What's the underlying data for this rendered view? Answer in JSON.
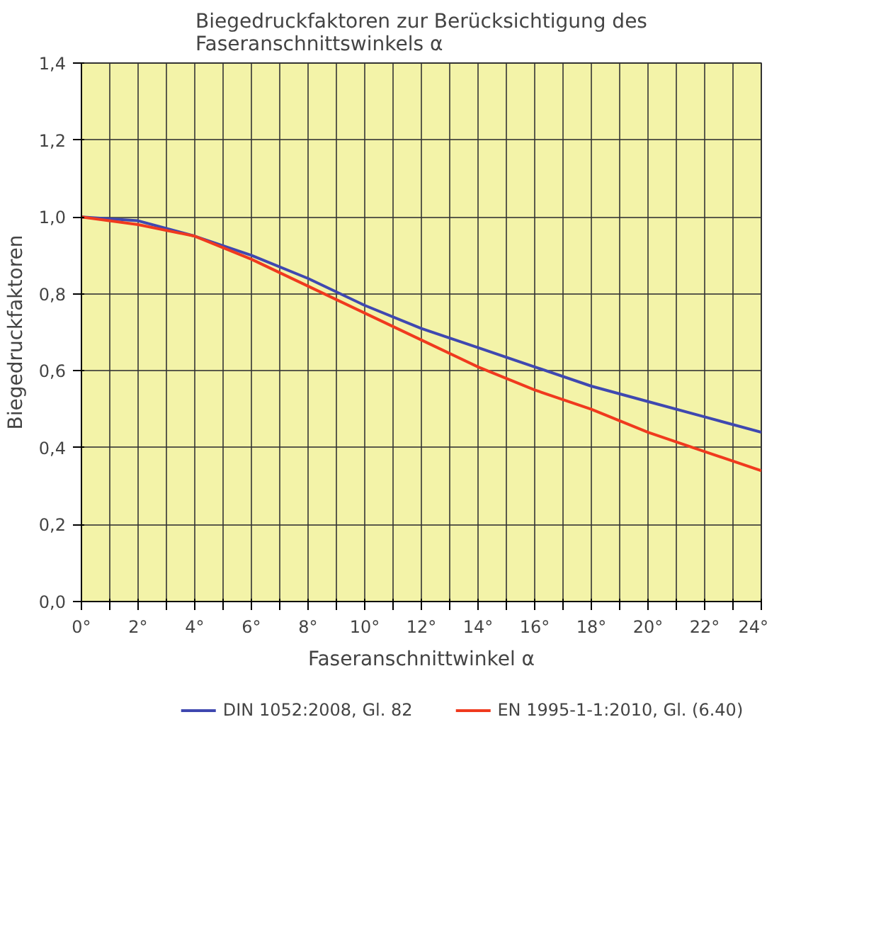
{
  "chart_data": {
    "type": "line",
    "title": "Biegedruckfaktoren zur Berücksichtigung des Faseranschnittswinkels α",
    "xlabel": "Faseranschnittwinkel α",
    "ylabel": "Biegedruckfaktoren",
    "x": [
      0,
      2,
      4,
      6,
      8,
      10,
      12,
      14,
      16,
      18,
      20,
      22,
      24
    ],
    "series": [
      {
        "name": "DIN 1052:2008, Gl. 82",
        "color": "#3f48b0",
        "values": [
          1.0,
          0.99,
          0.95,
          0.9,
          0.84,
          0.77,
          0.71,
          0.66,
          0.61,
          0.56,
          0.52,
          0.48,
          0.44
        ]
      },
      {
        "name": "EN 1995-1-1:2010, Gl. (6.40)",
        "color": "#f03a1e",
        "values": [
          1.0,
          0.98,
          0.95,
          0.89,
          0.82,
          0.75,
          0.68,
          0.61,
          0.55,
          0.5,
          0.44,
          0.39,
          0.34
        ]
      }
    ],
    "xlim": [
      0,
      24
    ],
    "xticks": [
      {
        "value": 0,
        "label": "0°"
      },
      {
        "value": 1,
        "label": null
      },
      {
        "value": 2,
        "label": "2°"
      },
      {
        "value": 3,
        "label": null
      },
      {
        "value": 4,
        "label": "4°"
      },
      {
        "value": 5,
        "label": null
      },
      {
        "value": 6,
        "label": "6°"
      },
      {
        "value": 7,
        "label": null
      },
      {
        "value": 8,
        "label": "8°"
      },
      {
        "value": 9,
        "label": null
      },
      {
        "value": 10,
        "label": "10°"
      },
      {
        "value": 11,
        "label": null
      },
      {
        "value": 12,
        "label": "12°"
      },
      {
        "value": 13,
        "label": null
      },
      {
        "value": 14,
        "label": "14°"
      },
      {
        "value": 15,
        "label": null
      },
      {
        "value": 16,
        "label": "16°"
      },
      {
        "value": 17,
        "label": null
      },
      {
        "value": 18,
        "label": "18°"
      },
      {
        "value": 19,
        "label": null
      },
      {
        "value": 20,
        "label": "20°"
      },
      {
        "value": 21,
        "label": null
      },
      {
        "value": 22,
        "label": "22°"
      },
      {
        "value": 23,
        "label": null
      },
      {
        "value": 24,
        "label": "24°"
      }
    ],
    "ylim": [
      0,
      1.4
    ],
    "yticks": [
      {
        "value": 0,
        "label": "0,0"
      },
      {
        "value": 0.2,
        "label": "0,2"
      },
      {
        "value": 0.4,
        "label": "0,4"
      },
      {
        "value": 0.6,
        "label": "0,6"
      },
      {
        "value": 0.8,
        "label": "0,8"
      },
      {
        "value": 1.0,
        "label": "1,0"
      },
      {
        "value": 1.2,
        "label": "1,2"
      },
      {
        "value": 1.4,
        "label": "1,4"
      }
    ],
    "grid": true,
    "legend": "bottom",
    "marker": "none",
    "line_style": "solid"
  }
}
